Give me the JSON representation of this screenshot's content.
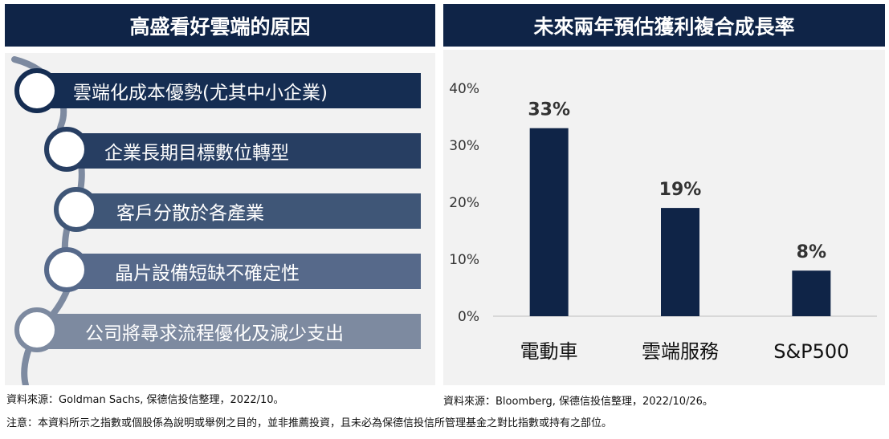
{
  "left": {
    "title": "高盛看好雲端的原因",
    "reasons": [
      {
        "label": "雲端化成本優勢(尤其中小企業)"
      },
      {
        "label": "企業長期目標數位轉型"
      },
      {
        "label": "客戶分散於各產業"
      },
      {
        "label": "晶片設備短缺不確定性"
      },
      {
        "label": "公司將尋求流程優化及減少支出"
      }
    ],
    "colors": [
      "#152d52",
      "#273e62",
      "#3f5677",
      "#56698a",
      "#7d8aa0"
    ],
    "source": "資料來源：Goldman Sachs, 保德信投信整理，2022/10。"
  },
  "right": {
    "title": "未來兩年預估獲利複合成長率",
    "source": "資料來源：Bloomberg, 保德信投信整理，2022/10/26。"
  },
  "note": "注意：本資料所示之指數或個股係為說明或舉例之目的，並非推薦投資，且未必為保德信投信所管理基金之對比指數或持有之部位。",
  "chart_data": {
    "type": "bar",
    "categories": [
      "電動車",
      "雲端服務",
      "S&P500"
    ],
    "values": [
      33,
      19,
      8
    ],
    "value_labels": [
      "33%",
      "19%",
      "8%"
    ],
    "ylim": [
      0,
      40
    ],
    "yticks": [
      0,
      10,
      20,
      30,
      40
    ],
    "ytick_labels": [
      "0%",
      "10%",
      "20%",
      "30%",
      "40%"
    ],
    "bar_color": "#0f2447",
    "grid": false
  }
}
